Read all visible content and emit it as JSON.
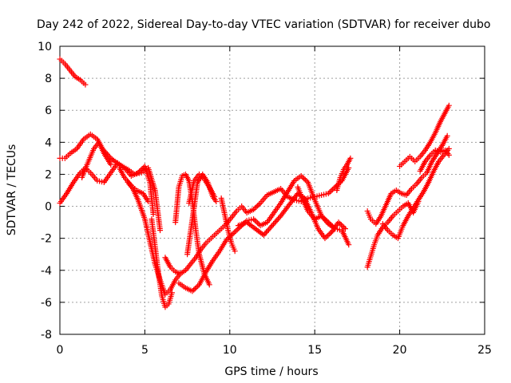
{
  "chart_data": {
    "type": "scatter",
    "title": "Day 242 of 2022, Sidereal Day-to-day VTEC variation (SDTVAR) for receiver dubo",
    "xlabel": "GPS time / hours",
    "ylabel": "SDTVAR / TECUs",
    "xlim": [
      0,
      25
    ],
    "ylim": [
      -8,
      10
    ],
    "xticks": [
      0,
      5,
      10,
      15,
      20,
      25
    ],
    "yticks": [
      -8,
      -6,
      -4,
      -2,
      0,
      2,
      4,
      6,
      8,
      10
    ],
    "grid": true,
    "grid_style": "dotted",
    "marker": "plus",
    "legend": "none",
    "colors": {
      "series": "#ff0000",
      "grid": "#a0a0a0",
      "axes": "#000000"
    },
    "series": [
      {
        "x": [
          0.0,
          0.3,
          0.6,
          0.9,
          1.2,
          1.5
        ],
        "y": [
          9.2,
          8.9,
          8.5,
          8.1,
          7.9,
          7.6
        ]
      },
      {
        "x": [
          0.0,
          0.3,
          0.6,
          1.0,
          1.4,
          1.8,
          2.2,
          2.5,
          3.0,
          3.5,
          4.0,
          4.4,
          4.8,
          5.2,
          5.6,
          5.9
        ],
        "y": [
          3.0,
          3.0,
          3.3,
          3.6,
          4.2,
          4.5,
          4.2,
          3.6,
          3.0,
          2.6,
          2.3,
          2.0,
          2.1,
          2.4,
          1.0,
          -1.5
        ]
      },
      {
        "x": [
          0.0,
          0.4,
          0.8,
          1.2,
          1.5,
          1.8,
          2.2,
          2.6,
          3.0,
          3.4,
          3.8,
          4.2,
          4.6,
          5.0,
          5.3,
          5.5
        ],
        "y": [
          0.2,
          0.8,
          1.5,
          2.1,
          2.4,
          2.1,
          1.6,
          1.5,
          2.1,
          2.7,
          2.4,
          1.9,
          2.1,
          2.5,
          1.5,
          -0.5
        ]
      },
      {
        "x": [
          1.3,
          1.6,
          2.0,
          2.3,
          2.6,
          3.0
        ],
        "y": [
          1.8,
          2.6,
          3.6,
          4.0,
          3.3,
          2.6
        ]
      },
      {
        "x": [
          3.5,
          3.8,
          4.2,
          4.5,
          4.9,
          5.2
        ],
        "y": [
          2.4,
          1.8,
          1.3,
          1.0,
          0.8,
          0.3
        ]
      },
      {
        "x": [
          4.0,
          4.3,
          4.6,
          5.0,
          5.3,
          5.6,
          5.9,
          6.2,
          6.5,
          6.8,
          7.1
        ],
        "y": [
          1.5,
          1.1,
          0.4,
          -0.8,
          -2.2,
          -3.6,
          -4.6,
          -5.5,
          -5.2,
          -4.6,
          -4.2
        ]
      },
      {
        "x": [
          5.4,
          5.6,
          5.8,
          6.0,
          6.2,
          6.4,
          6.6
        ],
        "y": [
          -0.8,
          -2.5,
          -4.2,
          -5.6,
          -6.3,
          -6.1,
          -5.4
        ]
      },
      {
        "x": [
          6.2,
          6.5,
          6.8,
          7.1,
          7.4,
          7.7,
          8.0,
          8.3,
          8.6,
          8.9,
          9.2,
          9.5,
          9.8,
          10.1,
          10.4,
          10.7,
          11.0,
          11.4,
          11.8,
          12.2,
          12.6,
          13.0,
          13.4,
          13.8,
          14.2,
          14.6,
          15.0,
          15.4,
          15.8,
          16.2,
          16.6,
          17.0
        ],
        "y": [
          -3.2,
          -3.8,
          -4.1,
          -4.2,
          -4.0,
          -3.6,
          -3.2,
          -2.7,
          -2.3,
          -2.0,
          -1.7,
          -1.4,
          -1.1,
          -0.7,
          -0.3,
          0.0,
          -0.4,
          -0.2,
          0.2,
          0.7,
          0.9,
          1.1,
          0.6,
          0.4,
          0.3,
          0.5,
          0.6,
          0.7,
          0.8,
          1.2,
          1.6,
          2.4
        ]
      },
      {
        "x": [
          6.8,
          7.0,
          7.2,
          7.4,
          7.6,
          7.8,
          8.0,
          8.2,
          8.5,
          8.8
        ],
        "y": [
          -1.0,
          1.2,
          1.9,
          2.0,
          1.6,
          0.3,
          -1.5,
          -3.0,
          -4.2,
          -4.9
        ]
      },
      {
        "x": [
          7.0,
          7.4,
          7.8,
          8.2,
          8.6,
          9.0,
          9.4,
          9.8,
          10.2,
          10.6,
          11.0,
          11.4,
          11.8,
          12.2,
          12.6,
          13.0,
          13.4,
          13.8,
          14.2,
          14.6,
          15.0,
          15.4,
          15.8,
          16.2
        ],
        "y": [
          -4.8,
          -5.1,
          -5.3,
          -4.9,
          -4.1,
          -3.4,
          -2.8,
          -2.1,
          -1.7,
          -1.3,
          -0.9,
          -0.8,
          -1.2,
          -1.0,
          -0.4,
          0.2,
          0.9,
          1.6,
          1.9,
          1.5,
          0.4,
          -0.6,
          -1.1,
          -1.4
        ]
      },
      {
        "x": [
          7.5,
          7.8,
          8.1,
          8.4,
          8.7,
          9.0,
          9.2
        ],
        "y": [
          -3.0,
          -0.8,
          1.5,
          2.0,
          1.5,
          0.6,
          0.3
        ]
      },
      {
        "x": [
          7.6,
          7.9,
          8.2,
          8.5,
          8.8,
          9.1
        ],
        "y": [
          0.2,
          1.6,
          2.0,
          1.7,
          1.2,
          0.6
        ]
      },
      {
        "x": [
          9.5,
          9.7,
          9.9,
          10.1,
          10.3
        ],
        "y": [
          0.5,
          -0.5,
          -1.5,
          -2.3,
          -2.8
        ]
      },
      {
        "x": [
          10.5,
          11.0,
          11.5,
          12.0,
          12.5,
          13.0,
          13.5,
          14.0,
          14.4,
          14.8,
          15.2,
          15.6,
          16.0,
          16.4,
          16.8
        ],
        "y": [
          -1.2,
          -1.0,
          -1.4,
          -1.8,
          -1.2,
          -0.6,
          0.1,
          0.8,
          0.5,
          -0.4,
          -1.4,
          -2.0,
          -1.6,
          -1.0,
          -1.4
        ]
      },
      {
        "x": [
          14.0,
          14.3,
          14.6,
          15.0,
          15.4,
          15.8,
          16.2,
          16.6,
          17.0
        ],
        "y": [
          1.2,
          0.4,
          -0.3,
          -0.8,
          -0.6,
          -1.0,
          -1.4,
          -1.5,
          -2.4
        ]
      },
      {
        "x": [
          16.3,
          16.5,
          16.7,
          16.9,
          17.1
        ],
        "y": [
          1.0,
          1.8,
          2.3,
          2.6,
          3.0
        ]
      },
      {
        "x": [
          18.1,
          18.3,
          18.5,
          18.7,
          19.0,
          19.3,
          19.6,
          19.9,
          20.2,
          20.5,
          20.8,
          21.1
        ],
        "y": [
          -3.8,
          -3.1,
          -2.4,
          -1.8,
          -1.3,
          -1.0,
          -0.6,
          -0.3,
          0.0,
          0.2,
          -0.4,
          0.3
        ]
      },
      {
        "x": [
          18.1,
          18.3,
          18.6,
          18.9,
          19.2,
          19.5,
          19.8,
          20.1,
          20.4,
          20.7,
          21.0,
          21.3,
          21.6,
          21.9,
          22.2,
          22.5,
          22.8
        ],
        "y": [
          -0.3,
          -0.8,
          -1.1,
          -0.6,
          0.1,
          0.8,
          1.0,
          0.8,
          0.7,
          1.1,
          1.4,
          1.8,
          2.1,
          2.8,
          3.3,
          3.8,
          4.4
        ]
      },
      {
        "x": [
          19.0,
          19.3,
          19.6,
          19.9,
          20.2,
          20.5,
          20.8,
          21.1,
          21.4,
          21.7,
          22.0,
          22.3,
          22.6,
          22.9
        ],
        "y": [
          -1.1,
          -1.5,
          -1.8,
          -2.0,
          -1.2,
          -0.6,
          -0.1,
          0.4,
          0.9,
          1.5,
          2.2,
          2.8,
          3.2,
          3.6
        ]
      },
      {
        "x": [
          20.0,
          20.3,
          20.6,
          20.9,
          21.2,
          21.5,
          21.8,
          22.1,
          22.4,
          22.7,
          22.9
        ],
        "y": [
          2.5,
          2.8,
          3.1,
          2.8,
          3.1,
          3.5,
          4.0,
          4.6,
          5.3,
          5.9,
          6.3
        ]
      },
      {
        "x": [
          21.2,
          21.5,
          21.8,
          22.1,
          22.4,
          22.7,
          22.9
        ],
        "y": [
          2.2,
          2.8,
          3.2,
          3.5,
          3.4,
          3.5,
          3.2
        ]
      }
    ]
  }
}
